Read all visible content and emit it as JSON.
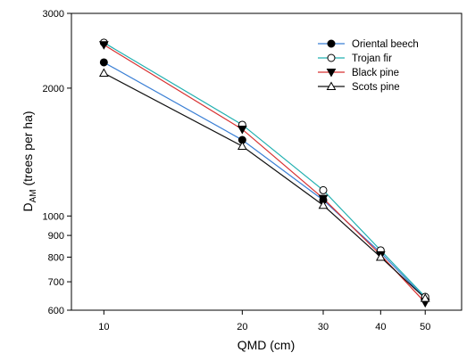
{
  "chart_data": {
    "type": "line",
    "title": "",
    "xlabel": "QMD (cm)",
    "ylabel_main": "D",
    "ylabel_sub": "AM",
    "ylabel_rest": " (trees per ha)",
    "x_scale": "log",
    "y_scale": "log",
    "xlim": [
      8.5,
      60
    ],
    "ylim": [
      600,
      3000
    ],
    "x_ticks": [
      10,
      20,
      30,
      40,
      50
    ],
    "y_ticks": [
      600,
      700,
      800,
      900,
      1000,
      2000,
      3000
    ],
    "x_tick_labels": [
      "10",
      "20",
      "30",
      "40",
      "50"
    ],
    "y_tick_labels": [
      "600",
      "700",
      "800",
      "900",
      "1000",
      "2000",
      "3000"
    ],
    "grid": false,
    "legend_position": "top-right",
    "x": [
      10,
      20,
      30,
      40,
      50
    ],
    "series": [
      {
        "name": "Oriental beech",
        "color": "#3a7fd5",
        "marker": "filled-circle",
        "values": [
          2300,
          1510,
          1090,
          820,
          640
        ]
      },
      {
        "name": "Trojan fir",
        "color": "#20b0b0",
        "marker": "open-circle",
        "values": [
          2560,
          1640,
          1150,
          830,
          645
        ]
      },
      {
        "name": "Black pine",
        "color": "#d83030",
        "marker": "filled-triangle-down",
        "values": [
          2530,
          1600,
          1100,
          810,
          625
        ]
      },
      {
        "name": "Scots pine",
        "color": "#111111",
        "marker": "open-triangle-up",
        "values": [
          2170,
          1460,
          1060,
          800,
          640
        ]
      }
    ]
  }
}
